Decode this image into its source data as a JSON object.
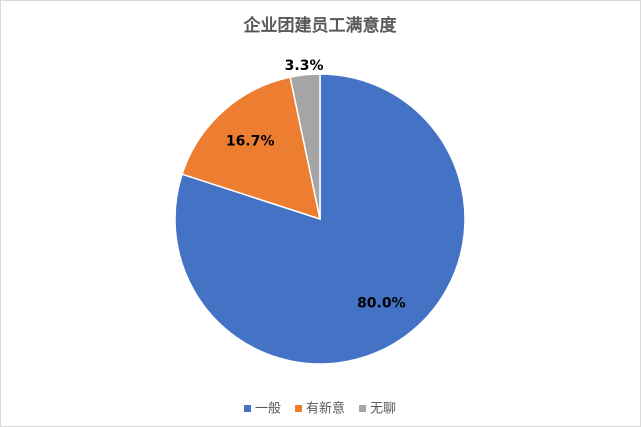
{
  "chart_data": {
    "type": "pie",
    "title": "企业团建员工满意度",
    "categories": [
      "一般",
      "有新意",
      "无聊"
    ],
    "values": [
      80.0,
      16.7,
      3.3
    ],
    "value_labels": [
      "80.0%",
      "16.7%",
      "3.3%"
    ],
    "colors": [
      "#4472c4",
      "#ed7d31",
      "#a5a5a5"
    ],
    "legend": "bottom"
  }
}
